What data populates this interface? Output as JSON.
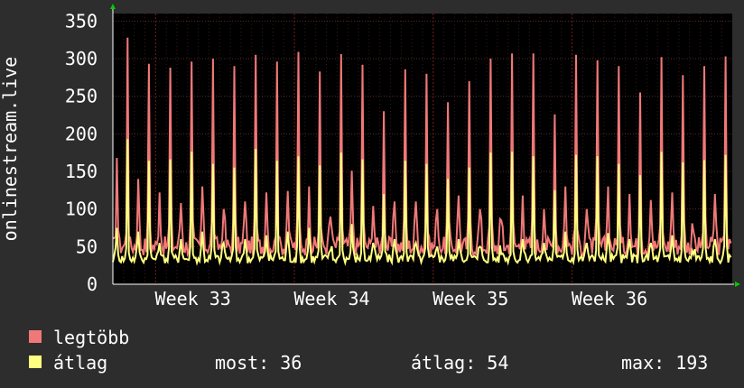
{
  "chart_data": {
    "type": "line",
    "ylabel": "onlinestream.live",
    "ylim": [
      0,
      360
    ],
    "yticks": [
      0,
      50,
      100,
      150,
      200,
      250,
      300,
      350
    ],
    "x_ticks": [
      "Week 33",
      "Week 34",
      "Week 35",
      "Week 36"
    ],
    "grid": true,
    "series": [
      {
        "name": "legtöbb",
        "color": "#f07878",
        "daily_peaks": [
          168,
          328,
          140,
          293,
          122,
          288,
          108,
          296,
          130,
          300,
          100,
          290,
          110,
          305,
          122,
          296,
          124,
          309,
          130,
          283,
          90,
          306,
          151,
          292,
          104,
          230,
          110,
          286,
          110,
          280,
          100,
          242,
          118,
          270,
          100,
          300,
          85,
          307,
          118,
          307,
          100,
          226,
          130,
          305,
          100,
          298,
          130,
          290,
          120,
          255,
          112,
          302,
          122,
          278,
          70,
          290,
          120,
          303
        ],
        "rest": [
          38,
          95
        ]
      },
      {
        "name": "átlag",
        "color": "#ffff80",
        "daily_peaks": [
          75,
          193,
          70,
          164,
          55,
          166,
          60,
          176,
          70,
          160,
          55,
          155,
          60,
          180,
          65,
          164,
          70,
          170,
          75,
          158,
          45,
          175,
          80,
          166,
          55,
          120,
          60,
          164,
          55,
          160,
          50,
          140,
          60,
          155,
          50,
          175,
          40,
          176,
          60,
          170,
          55,
          125,
          70,
          172,
          55,
          170,
          68,
          160,
          60,
          145,
          55,
          176,
          65,
          162,
          40,
          165,
          60,
          172
        ],
        "rest": [
          28,
          55
        ]
      }
    ],
    "legend": [
      "legtöbb",
      "átlag"
    ]
  },
  "stats": {
    "most": "most: 36",
    "atlag": "átlag: 54",
    "max": "max: 193"
  }
}
